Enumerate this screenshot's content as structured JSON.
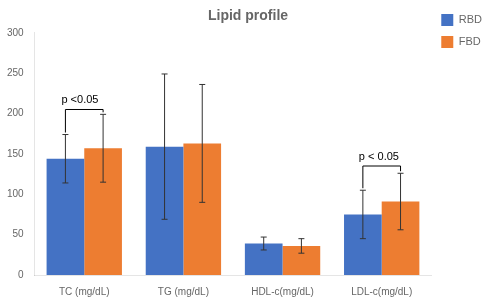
{
  "chart_data": {
    "type": "bar",
    "title": "Lipid profile",
    "categories": [
      "TC (mg/dL)",
      "TG (mg/dL)",
      "HDL-c(mg/dL)",
      "LDL-c(mg/dL)"
    ],
    "series": [
      {
        "name": "RBD",
        "color": "#4472C4",
        "values": [
          144,
          159,
          39,
          75
        ],
        "errors": [
          30,
          90,
          8,
          30
        ]
      },
      {
        "name": "FBD",
        "color": "#ED7D31",
        "values": [
          157,
          163,
          36,
          91
        ],
        "errors": [
          42,
          73,
          9,
          35
        ]
      }
    ],
    "annotations": [
      {
        "text": "p <0.05",
        "category": "TC (mg/dL)",
        "y": 205
      },
      {
        "text": "p < 0.05",
        "category": "LDL-c(mg/dL)",
        "y": 135
      }
    ],
    "ylim": [
      0,
      300
    ],
    "yticks": [
      0,
      50,
      100,
      150,
      200,
      250,
      300
    ],
    "grid": false,
    "legend": "upper right"
  }
}
